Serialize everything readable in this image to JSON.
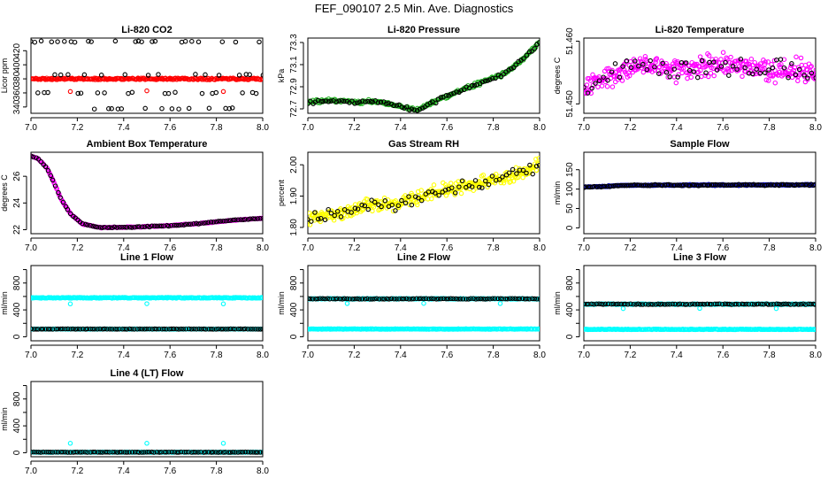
{
  "figure": {
    "title": "FEF_090107  2.5 Min. Ave. Diagnostics"
  },
  "chart_data": [
    {
      "type": "scatter",
      "title": "Li-820 CO2",
      "xlabel": "",
      "ylabel": "Licor ppm",
      "xlim": [
        7.0,
        8.0
      ],
      "ylim": [
        331,
        438
      ],
      "xticks": [
        7.0,
        7.2,
        7.4,
        7.6,
        7.8,
        8.0
      ],
      "yticks": [
        340,
        360,
        380,
        400,
        420
      ],
      "series": [
        {
          "name": "CO2 (red)",
          "color": "#ff0000",
          "gen": {
            "kind": "flat",
            "n": 240,
            "x0": 7.0,
            "x1": 8.0,
            "base": 380,
            "noise": 1.2,
            "seed": 11
          },
          "extra": [
            {
              "x": 7.17,
              "y": 362
            },
            {
              "x": 7.5,
              "y": 363
            },
            {
              "x": 7.83,
              "y": 362
            }
          ]
        },
        {
          "name": "CO2 (black)",
          "color": "#000000",
          "gen": {
            "kind": "levels",
            "n": 70,
            "x0": 7.0,
            "x1": 8.0,
            "levels": [
              433,
              386,
              360,
              338
            ],
            "seed": 12
          }
        }
      ]
    },
    {
      "type": "scatter",
      "title": "Li-820 Pressure",
      "xlabel": "",
      "ylabel": "kPa",
      "xlim": [
        7.0,
        8.0
      ],
      "ylim": [
        72.66,
        73.34
      ],
      "xticks": [
        7.0,
        7.2,
        7.4,
        7.6,
        7.8,
        8.0
      ],
      "yticks": [
        72.7,
        72.9,
        73.1,
        73.3
      ],
      "series": [
        {
          "name": "Pressure (green)",
          "color": "#22b022",
          "gen": {
            "kind": "curve",
            "n": 260,
            "noise": 0.015,
            "seed": 21,
            "pts": [
              [
                7.0,
                72.76
              ],
              [
                7.1,
                72.78
              ],
              [
                7.2,
                72.76
              ],
              [
                7.3,
                72.77
              ],
              [
                7.4,
                72.72
              ],
              [
                7.47,
                72.69
              ],
              [
                7.55,
                72.77
              ],
              [
                7.65,
                72.86
              ],
              [
                7.75,
                72.94
              ],
              [
                7.85,
                73.02
              ],
              [
                7.92,
                73.13
              ],
              [
                8.0,
                73.3
              ]
            ]
          }
        },
        {
          "name": "Pressure (black)",
          "color": "#000000",
          "gen": {
            "kind": "curve",
            "n": 90,
            "noise": 0.015,
            "seed": 22,
            "pts": [
              [
                7.0,
                72.76
              ],
              [
                7.1,
                72.78
              ],
              [
                7.2,
                72.76
              ],
              [
                7.3,
                72.77
              ],
              [
                7.4,
                72.72
              ],
              [
                7.47,
                72.69
              ],
              [
                7.55,
                72.77
              ],
              [
                7.65,
                72.86
              ],
              [
                7.75,
                72.94
              ],
              [
                7.85,
                73.02
              ],
              [
                7.92,
                73.13
              ],
              [
                8.0,
                73.3
              ]
            ]
          }
        }
      ]
    },
    {
      "type": "scatter",
      "title": "Li-820 Temperature",
      "xlabel": "",
      "ylabel": "degrees C",
      "xlim": [
        7.0,
        8.0
      ],
      "ylim": [
        51.4485,
        51.4605
      ],
      "xticks": [
        7.0,
        7.2,
        7.4,
        7.6,
        7.8,
        8.0
      ],
      "yticks": [
        51.45,
        51.46
      ],
      "ytick_labels": [
        "51.450",
        "51.460"
      ],
      "series": [
        {
          "name": "Temperature (magenta)",
          "color": "#ff00ff",
          "gen": {
            "kind": "curve",
            "n": 330,
            "noise": 0.0018,
            "seed": 31,
            "pts": [
              [
                7.0,
                51.452
              ],
              [
                7.1,
                51.4545
              ],
              [
                7.25,
                51.4565
              ],
              [
                7.4,
                51.4555
              ],
              [
                7.6,
                51.456
              ],
              [
                7.8,
                51.4555
              ],
              [
                8.0,
                51.455
              ]
            ]
          }
        },
        {
          "name": "Temperature (black)",
          "color": "#000000",
          "gen": {
            "kind": "curve",
            "n": 60,
            "noise": 0.0015,
            "seed": 32,
            "pts": [
              [
                7.0,
                51.452
              ],
              [
                7.1,
                51.4545
              ],
              [
                7.25,
                51.4565
              ],
              [
                7.4,
                51.4555
              ],
              [
                7.6,
                51.456
              ],
              [
                7.8,
                51.4555
              ],
              [
                8.0,
                51.455
              ]
            ]
          }
        }
      ]
    },
    {
      "type": "scatter",
      "title": "Ambient Box Temperature",
      "xlabel": "",
      "ylabel": "degrees C",
      "xlim": [
        7.0,
        8.0
      ],
      "ylim": [
        21.7,
        27.8
      ],
      "xticks": [
        7.0,
        7.2,
        7.4,
        7.6,
        7.8,
        8.0
      ],
      "yticks": [
        22,
        24,
        26
      ],
      "series": [
        {
          "name": "Box temperature (magenta)",
          "color": "#ff00ff",
          "gen": {
            "kind": "curve",
            "n": 300,
            "noise": 0.03,
            "seed": 41,
            "pts": [
              [
                7.0,
                27.5
              ],
              [
                7.03,
                27.35
              ],
              [
                7.07,
                26.6
              ],
              [
                7.1,
                25.5
              ],
              [
                7.13,
                24.3
              ],
              [
                7.17,
                23.2
              ],
              [
                7.22,
                22.45
              ],
              [
                7.3,
                22.15
              ],
              [
                7.45,
                22.2
              ],
              [
                7.6,
                22.3
              ],
              [
                7.75,
                22.5
              ],
              [
                7.9,
                22.75
              ],
              [
                8.0,
                22.85
              ]
            ]
          }
        },
        {
          "name": "Box temperature (black)",
          "color": "#000000",
          "gen": {
            "kind": "curve",
            "n": 95,
            "noise": 0.03,
            "seed": 42,
            "pts": [
              [
                7.0,
                27.5
              ],
              [
                7.03,
                27.35
              ],
              [
                7.07,
                26.6
              ],
              [
                7.1,
                25.5
              ],
              [
                7.13,
                24.3
              ],
              [
                7.17,
                23.2
              ],
              [
                7.22,
                22.45
              ],
              [
                7.3,
                22.15
              ],
              [
                7.45,
                22.2
              ],
              [
                7.6,
                22.3
              ],
              [
                7.75,
                22.5
              ],
              [
                7.9,
                22.75
              ],
              [
                8.0,
                22.85
              ]
            ]
          }
        }
      ]
    },
    {
      "type": "scatter",
      "title": "Gas Stream RH",
      "xlabel": "",
      "ylabel": "percent",
      "xlim": [
        7.0,
        8.0
      ],
      "ylim": [
        1.78,
        2.04
      ],
      "xticks": [
        7.0,
        7.2,
        7.4,
        7.6,
        7.8,
        8.0
      ],
      "yticks": [
        1.8,
        1.9,
        2.0
      ],
      "ytick_labels": [
        "1.80",
        "1.90",
        "2.00"
      ],
      "series": [
        {
          "name": "RH (yellow)",
          "color": "#ffff00",
          "gen": {
            "kind": "curve",
            "n": 340,
            "noise": 0.02,
            "seed": 51,
            "pts": [
              [
                7.0,
                1.83
              ],
              [
                7.1,
                1.84
              ],
              [
                7.2,
                1.86
              ],
              [
                7.4,
                1.88
              ],
              [
                7.6,
                1.92
              ],
              [
                7.8,
                1.95
              ],
              [
                7.95,
                1.98
              ],
              [
                8.0,
                2.0
              ]
            ]
          }
        },
        {
          "name": "RH (black)",
          "color": "#000000",
          "gen": {
            "kind": "curve",
            "n": 70,
            "noise": 0.02,
            "seed": 52,
            "pts": [
              [
                7.0,
                1.83
              ],
              [
                7.1,
                1.84
              ],
              [
                7.2,
                1.86
              ],
              [
                7.4,
                1.88
              ],
              [
                7.6,
                1.92
              ],
              [
                7.8,
                1.95
              ],
              [
                7.95,
                1.98
              ],
              [
                8.0,
                2.0
              ]
            ]
          }
        }
      ]
    },
    {
      "type": "scatter",
      "title": "Sample Flow",
      "xlabel": "",
      "ylabel": "ml/min",
      "xlim": [
        7.0,
        8.0
      ],
      "ylim": [
        -15,
        195
      ],
      "xticks": [
        7.0,
        7.2,
        7.4,
        7.6,
        7.8,
        8.0
      ],
      "yticks": [
        0,
        50,
        100,
        150
      ],
      "series": [
        {
          "name": "Sample flow (blue)",
          "color": "#1010c0",
          "gen": {
            "kind": "curve",
            "n": 260,
            "noise": 1.5,
            "seed": 61,
            "pts": [
              [
                7.0,
                105
              ],
              [
                7.2,
                110
              ],
              [
                8.0,
                111
              ]
            ]
          }
        },
        {
          "name": "Sample flow (black)",
          "color": "#000000",
          "gen": {
            "kind": "curve",
            "n": 110,
            "noise": 1.5,
            "seed": 62,
            "pts": [
              [
                7.0,
                105
              ],
              [
                7.2,
                110
              ],
              [
                8.0,
                111
              ]
            ]
          }
        }
      ]
    },
    {
      "type": "scatter",
      "title": "Line 1 Flow",
      "xlabel": "",
      "ylabel": "ml/min",
      "xlim": [
        7.0,
        8.0
      ],
      "ylim": [
        -60,
        1060
      ],
      "xticks": [
        7.0,
        7.2,
        7.4,
        7.6,
        7.8,
        8.0
      ],
      "yticks": [
        0,
        400,
        800
      ],
      "minor_yticks": [
        200,
        600,
        1000
      ],
      "series": [
        {
          "name": "Line 1 (cyan, high)",
          "color": "#00ffff",
          "gen": {
            "kind": "flat",
            "n": 260,
            "x0": 7.0,
            "x1": 8.0,
            "base": 580,
            "noise": 6,
            "seed": 71
          },
          "extra": [
            {
              "x": 7.17,
              "y": 490
            },
            {
              "x": 7.5,
              "y": 492
            },
            {
              "x": 7.83,
              "y": 490
            }
          ]
        },
        {
          "name": "Line 1 (cyan, low)",
          "color": "#00ffff",
          "gen": {
            "kind": "flat",
            "n": 200,
            "x0": 7.0,
            "x1": 8.0,
            "base": 115,
            "noise": 3,
            "seed": 72
          }
        },
        {
          "name": "Line 1 (black)",
          "color": "#000000",
          "gen": {
            "kind": "flat",
            "n": 95,
            "x0": 7.0,
            "x1": 8.0,
            "base": 115,
            "noise": 3,
            "seed": 73
          }
        }
      ]
    },
    {
      "type": "scatter",
      "title": "Line 2 Flow",
      "xlabel": "",
      "ylabel": "ml/min",
      "xlim": [
        7.0,
        8.0
      ],
      "ylim": [
        -60,
        1060
      ],
      "xticks": [
        7.0,
        7.2,
        7.4,
        7.6,
        7.8,
        8.0
      ],
      "yticks": [
        0,
        400,
        800
      ],
      "minor_yticks": [
        200,
        600,
        1000
      ],
      "series": [
        {
          "name": "Line 2 (cyan, high)",
          "color": "#00ffff",
          "gen": {
            "kind": "flat",
            "n": 220,
            "x0": 7.0,
            "x1": 8.0,
            "base": 565,
            "noise": 6,
            "seed": 81
          },
          "extra": [
            {
              "x": 7.17,
              "y": 495
            },
            {
              "x": 7.5,
              "y": 497
            },
            {
              "x": 7.83,
              "y": 495
            }
          ]
        },
        {
          "name": "Line 2 (black)",
          "color": "#000000",
          "gen": {
            "kind": "flat",
            "n": 95,
            "x0": 7.0,
            "x1": 8.0,
            "base": 565,
            "noise": 5,
            "seed": 82
          }
        },
        {
          "name": "Line 2 (cyan, low)",
          "color": "#00ffff",
          "gen": {
            "kind": "flat",
            "n": 260,
            "x0": 7.0,
            "x1": 8.0,
            "base": 115,
            "noise": 4,
            "seed": 83
          }
        }
      ]
    },
    {
      "type": "scatter",
      "title": "Line 3 Flow",
      "xlabel": "",
      "ylabel": "ml/min",
      "xlim": [
        7.0,
        8.0
      ],
      "ylim": [
        -60,
        1060
      ],
      "xticks": [
        7.0,
        7.2,
        7.4,
        7.6,
        7.8,
        8.0
      ],
      "yticks": [
        0,
        400,
        800
      ],
      "minor_yticks": [
        200,
        600,
        1000
      ],
      "series": [
        {
          "name": "Line 3 (cyan, high)",
          "color": "#00ffff",
          "gen": {
            "kind": "flat",
            "n": 220,
            "x0": 7.0,
            "x1": 8.0,
            "base": 485,
            "noise": 6,
            "seed": 91
          },
          "extra": [
            {
              "x": 7.17,
              "y": 420
            },
            {
              "x": 7.5,
              "y": 422
            },
            {
              "x": 7.83,
              "y": 420
            }
          ]
        },
        {
          "name": "Line 3 (black)",
          "color": "#000000",
          "gen": {
            "kind": "flat",
            "n": 95,
            "x0": 7.0,
            "x1": 8.0,
            "base": 485,
            "noise": 5,
            "seed": 92
          }
        },
        {
          "name": "Line 3 (cyan, low)",
          "color": "#00ffff",
          "gen": {
            "kind": "flat",
            "n": 260,
            "x0": 7.0,
            "x1": 8.0,
            "base": 110,
            "noise": 4,
            "seed": 93
          }
        }
      ]
    },
    {
      "type": "scatter",
      "title": "Line 4 (LT) Flow",
      "xlabel": "",
      "ylabel": "ml/min",
      "xlim": [
        7.0,
        8.0
      ],
      "ylim": [
        -60,
        1060
      ],
      "xticks": [
        7.0,
        7.2,
        7.4,
        7.6,
        7.8,
        8.0
      ],
      "yticks": [
        0,
        400,
        800
      ],
      "minor_yticks": [
        200,
        600,
        1000
      ],
      "series": [
        {
          "name": "Line 4 (cyan)",
          "color": "#00ffff",
          "gen": {
            "kind": "flat",
            "n": 220,
            "x0": 7.0,
            "x1": 8.0,
            "base": 8,
            "noise": 3,
            "seed": 101
          },
          "extra": [
            {
              "x": 7.17,
              "y": 140
            },
            {
              "x": 7.5,
              "y": 140
            },
            {
              "x": 7.83,
              "y": 140
            }
          ]
        },
        {
          "name": "Line 4 (black)",
          "color": "#000000",
          "gen": {
            "kind": "flat",
            "n": 95,
            "x0": 7.0,
            "x1": 8.0,
            "base": 8,
            "noise": 3,
            "seed": 102
          }
        }
      ]
    }
  ]
}
